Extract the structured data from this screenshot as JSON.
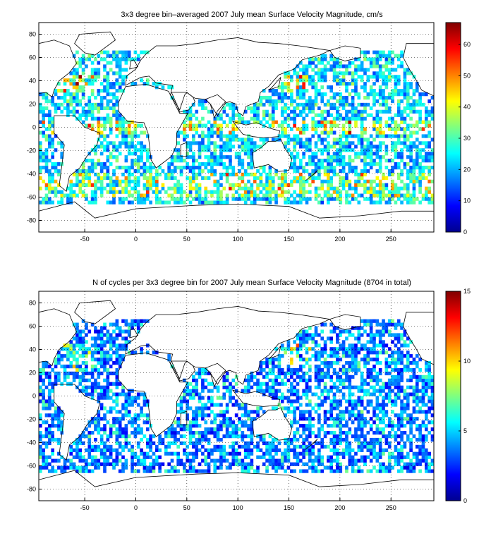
{
  "chart_data": [
    {
      "type": "heatmap",
      "title": "3x3 degree bin–averaged 2007 July mean Surface Velocity Magnitude, cm/s",
      "xlabel": "",
      "ylabel": "",
      "xlim": [
        -95,
        292
      ],
      "ylim": [
        -90,
        90
      ],
      "x_ticks": [
        -50,
        0,
        50,
        100,
        150,
        200,
        250
      ],
      "y_ticks": [
        80,
        60,
        40,
        20,
        0,
        -20,
        -40,
        -60,
        -80
      ],
      "colorbar": {
        "range": [
          0,
          67
        ],
        "ticks": [
          0,
          10,
          20,
          30,
          40,
          50,
          60
        ]
      },
      "grid": "dotted",
      "colormap": "jet",
      "bin_size_deg": 3
    },
    {
      "type": "heatmap",
      "title": "N of cycles per 3x3 degree bin for 2007 July mean Surface Velocity Magnitude (8704 in total)",
      "xlabel": "",
      "ylabel": "",
      "xlim": [
        -95,
        292
      ],
      "ylim": [
        -90,
        90
      ],
      "x_ticks": [
        -50,
        0,
        50,
        100,
        150,
        200,
        250
      ],
      "y_ticks": [
        80,
        60,
        40,
        20,
        0,
        -20,
        -40,
        -60,
        -80
      ],
      "colorbar": {
        "range": [
          0,
          15
        ],
        "ticks": [
          0,
          5,
          10,
          15
        ]
      },
      "grid": "dotted",
      "colormap": "jet",
      "bin_size_deg": 3
    }
  ]
}
